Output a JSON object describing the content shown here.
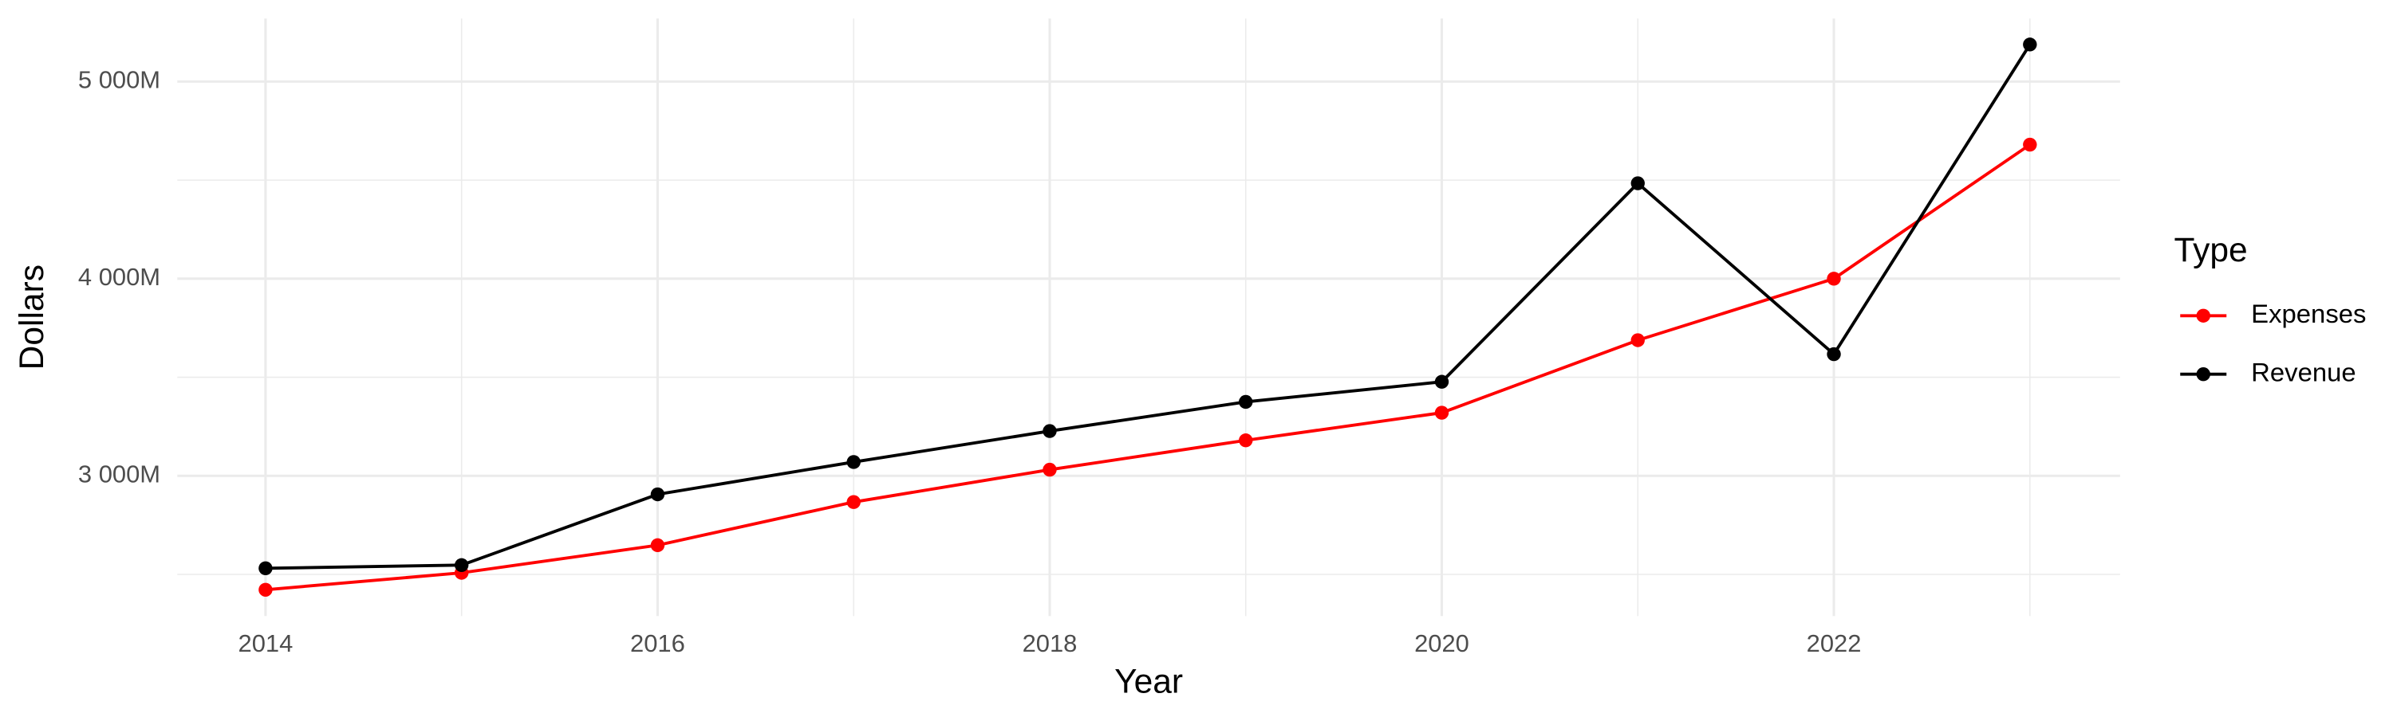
{
  "chart_data": {
    "type": "line",
    "x": [
      2014,
      2015,
      2016,
      2017,
      2018,
      2019,
      2020,
      2021,
      2022,
      2023
    ],
    "series": [
      {
        "name": "Expenses",
        "color": "#ff0000",
        "values": [
          2422,
          2508,
          2648,
          2867,
          3031,
          3180,
          3320,
          3688,
          4000,
          4680
        ]
      },
      {
        "name": "Revenue",
        "color": "#000000",
        "values": [
          2531,
          2547,
          2906,
          3070,
          3227,
          3375,
          3477,
          4484,
          3617,
          5188
        ]
      }
    ],
    "xlabel": "Year",
    "ylabel": "Dollars",
    "legend_title": "Type",
    "legend": "right",
    "xlim": [
      2013.55,
      2023.46
    ],
    "xticks": [
      2014,
      2016,
      2018,
      2020,
      2022
    ],
    "ylim": [
      2289,
      5320
    ],
    "yticks": [
      {
        "value": 3000,
        "label": "3 000M"
      },
      {
        "value": 4000,
        "label": "4 000M"
      },
      {
        "value": 5000,
        "label": "5 000M"
      }
    ],
    "grid": true
  }
}
